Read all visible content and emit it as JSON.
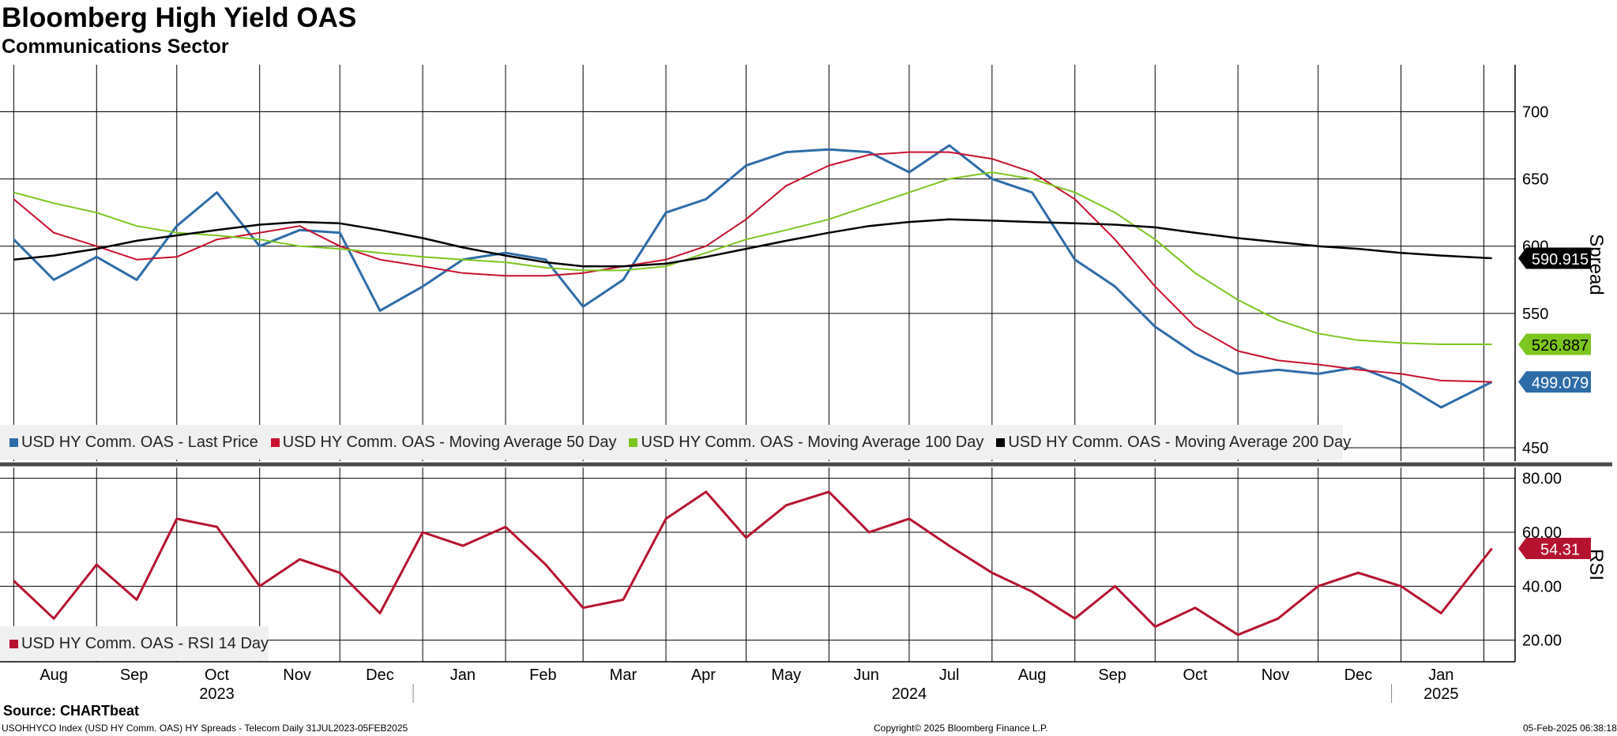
{
  "title": "Bloomberg High Yield OAS",
  "subtitle": "Communications Sector",
  "footer": {
    "source": "Source: CHARTbeat",
    "description": "USOHHYCO Index (USD HY Comm. OAS) HY Spreads - Telecom  Daily 31JUL2023-05FEB2025",
    "copyright": "Copyright© 2025 Bloomberg Finance L.P.",
    "timestamp": "05-Feb-2025 06:38:18"
  },
  "colors": {
    "last_price": "#2e6ca8",
    "ma50": "#c8102e",
    "ma100": "#7cc61f",
    "ma200": "#000000",
    "rsi": "#b5122f",
    "grid": "#000000"
  },
  "chart_data": [
    {
      "type": "line",
      "panel": "upper",
      "ylabel": "Spread",
      "ylim": [
        440,
        735
      ],
      "yticks": [
        "450",
        "550",
        "600",
        "650",
        "700"
      ],
      "grid": true,
      "legend_position": "bottom-left",
      "x_months": [
        "Aug",
        "Sep",
        "Oct",
        "Nov",
        "Dec",
        "Jan",
        "Feb",
        "Mar",
        "Apr",
        "May",
        "Jun",
        "Jul",
        "Aug",
        "Sep",
        "Oct",
        "Nov",
        "Dec",
        "Jan"
      ],
      "x_years": [
        "2023",
        "2024",
        "2025"
      ],
      "x": [
        "2023-08-01",
        "2023-08-16",
        "2023-09-01",
        "2023-09-16",
        "2023-10-01",
        "2023-10-16",
        "2023-11-01",
        "2023-11-16",
        "2023-12-01",
        "2023-12-16",
        "2024-01-01",
        "2024-01-16",
        "2024-02-01",
        "2024-02-16",
        "2024-03-01",
        "2024-03-16",
        "2024-04-01",
        "2024-04-16",
        "2024-05-01",
        "2024-05-16",
        "2024-06-01",
        "2024-06-16",
        "2024-07-01",
        "2024-07-16",
        "2024-08-01",
        "2024-08-16",
        "2024-09-01",
        "2024-09-16",
        "2024-10-01",
        "2024-10-16",
        "2024-11-01",
        "2024-11-16",
        "2024-12-01",
        "2024-12-16",
        "2025-01-01",
        "2025-01-16",
        "2025-02-04"
      ],
      "series": [
        {
          "name": "USD HY Comm. OAS - Last Price",
          "last_label": "499.079",
          "values": [
            605,
            575,
            592,
            575,
            615,
            640,
            600,
            612,
            610,
            552,
            570,
            590,
            595,
            590,
            555,
            575,
            625,
            635,
            660,
            670,
            672,
            670,
            655,
            675,
            650,
            640,
            590,
            570,
            540,
            520,
            505,
            508,
            505,
            510,
            498,
            480,
            499
          ]
        },
        {
          "name": "USD HY Comm. OAS - Moving Average 50 Day",
          "last_label": "",
          "values": [
            635,
            610,
            600,
            590,
            592,
            605,
            610,
            615,
            600,
            590,
            585,
            580,
            578,
            578,
            580,
            585,
            590,
            600,
            620,
            645,
            660,
            668,
            670,
            670,
            665,
            655,
            635,
            605,
            570,
            540,
            522,
            515,
            512,
            508,
            505,
            500,
            499
          ]
        },
        {
          "name": "USD HY Comm. OAS - Moving Average 100 Day",
          "last_label": "526.887",
          "values": [
            640,
            632,
            625,
            615,
            610,
            608,
            605,
            600,
            598,
            595,
            592,
            590,
            588,
            584,
            582,
            582,
            585,
            595,
            605,
            612,
            620,
            630,
            640,
            650,
            655,
            650,
            640,
            625,
            605,
            580,
            560,
            545,
            535,
            530,
            528,
            527,
            527
          ]
        },
        {
          "name": "USD HY Comm. OAS - Moving Average 200 Day",
          "last_label": "590.915",
          "values": [
            590,
            593,
            598,
            604,
            608,
            612,
            616,
            618,
            617,
            612,
            606,
            599,
            593,
            588,
            585,
            585,
            587,
            592,
            598,
            604,
            610,
            615,
            618,
            620,
            619,
            618,
            617,
            616,
            614,
            610,
            606,
            603,
            600,
            598,
            595,
            593,
            591
          ]
        }
      ]
    },
    {
      "type": "line",
      "panel": "lower",
      "ylabel": "RSI",
      "ylim": [
        12,
        84
      ],
      "yticks": [
        "20.00",
        "40.00",
        "60.00",
        "80.00"
      ],
      "grid": true,
      "legend_position": "bottom-left",
      "x": [
        "2023-08-01",
        "2023-08-16",
        "2023-09-01",
        "2023-09-16",
        "2023-10-01",
        "2023-10-16",
        "2023-11-01",
        "2023-11-16",
        "2023-12-01",
        "2023-12-16",
        "2024-01-01",
        "2024-01-16",
        "2024-02-01",
        "2024-02-16",
        "2024-03-01",
        "2024-03-16",
        "2024-04-01",
        "2024-04-16",
        "2024-05-01",
        "2024-05-16",
        "2024-06-01",
        "2024-06-16",
        "2024-07-01",
        "2024-07-16",
        "2024-08-01",
        "2024-08-16",
        "2024-09-01",
        "2024-09-16",
        "2024-10-01",
        "2024-10-16",
        "2024-11-01",
        "2024-11-16",
        "2024-12-01",
        "2024-12-16",
        "2025-01-01",
        "2025-01-16",
        "2025-02-04"
      ],
      "series": [
        {
          "name": "USD HY Comm. OAS - RSI 14 Day",
          "last_label": "54.31",
          "values": [
            42,
            28,
            48,
            35,
            65,
            62,
            40,
            50,
            45,
            30,
            60,
            55,
            62,
            48,
            32,
            35,
            65,
            75,
            58,
            70,
            75,
            60,
            65,
            55,
            45,
            38,
            28,
            40,
            25,
            32,
            22,
            28,
            40,
            45,
            40,
            30,
            54
          ]
        }
      ]
    }
  ]
}
